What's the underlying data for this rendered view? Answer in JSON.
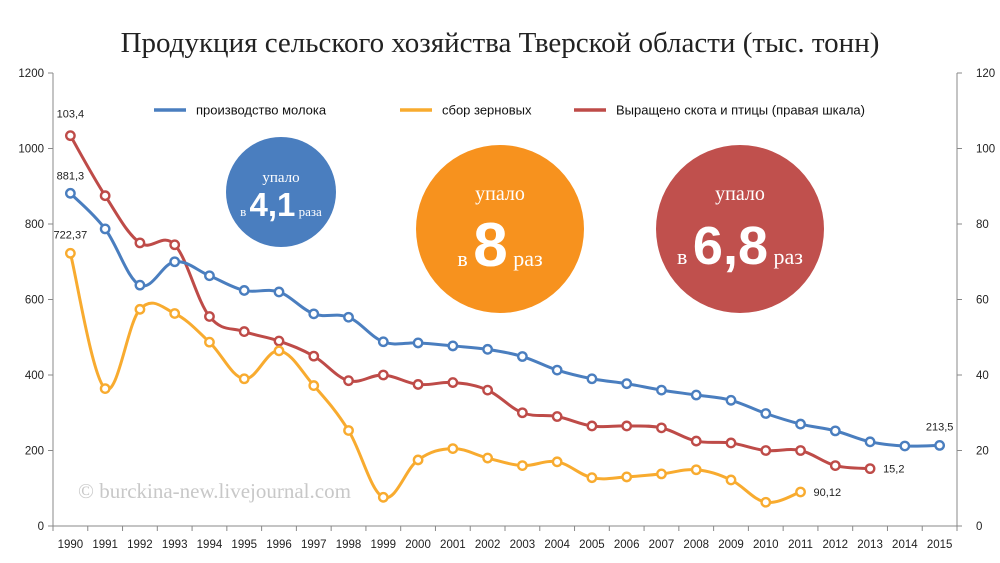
{
  "chart_data": {
    "type": "line",
    "title": "Продукция сельского хозяйства Тверской области (тыс. тонн)",
    "x": [
      "1990",
      "1991",
      "1992",
      "1993",
      "1994",
      "1995",
      "1996",
      "1997",
      "1998",
      "1999",
      "2000",
      "2001",
      "2002",
      "2003",
      "2004",
      "2005",
      "2006",
      "2007",
      "2008",
      "2009",
      "2010",
      "2011",
      "2012",
      "2013",
      "2014",
      "2015"
    ],
    "ylim_left": [
      0,
      1200
    ],
    "yticks_left": [
      "0",
      "200",
      "400",
      "600",
      "800",
      "1000",
      "1200"
    ],
    "ylim_right": [
      0,
      120
    ],
    "yticks_right": [
      "0",
      "20",
      "40",
      "60",
      "80",
      "100",
      "120"
    ],
    "grid": false,
    "legend_placement": "top",
    "series": [
      {
        "name": "производство молока",
        "axis": "left",
        "color": "#4a7ebf",
        "values": [
          881.3,
          787,
          638,
          700,
          663,
          624,
          620,
          562,
          553,
          488,
          485,
          477,
          468,
          449,
          413,
          390,
          377,
          360,
          347,
          333,
          298,
          270,
          252,
          223,
          212,
          213.5
        ]
      },
      {
        "name": "сбор зерновых",
        "axis": "left",
        "color": "#f8ab2f",
        "values": [
          722.37,
          364,
          574,
          563,
          487,
          390,
          464,
          372,
          253,
          76,
          175,
          205,
          180,
          160,
          170,
          128,
          130,
          138,
          149,
          122,
          63,
          90.12,
          null,
          null,
          null,
          null
        ]
      },
      {
        "name": "Выращено скота и  птицы (правая шкала)",
        "axis": "right",
        "color": "#be4b48",
        "values": [
          103.4,
          87.5,
          75,
          74.5,
          55.5,
          51.5,
          49,
          45,
          38.5,
          40,
          37.5,
          38,
          36,
          30,
          29,
          26.5,
          26.5,
          26,
          22.5,
          22,
          20,
          20,
          16,
          15.2,
          null,
          null
        ]
      }
    ],
    "annotations": {
      "milk_first": "881,3",
      "milk_last": "213,5",
      "grain_first": "722,37",
      "grain_last": "90,12",
      "livestock_first": "103,4",
      "livestock_last": "15,2"
    },
    "bubbles": [
      {
        "top": "упало",
        "prefix": "в",
        "value": "4,1",
        "suffix": "раза",
        "color": "#4a7ebf"
      },
      {
        "top": "упало",
        "prefix": "в",
        "value": "8",
        "suffix": "раз",
        "color": "#f7921e"
      },
      {
        "top": "упало",
        "prefix": "в",
        "value": "6,8",
        "suffix": "раз",
        "color": "#c0504d"
      }
    ],
    "watermark": "© burckina-new.livejournal.com"
  }
}
